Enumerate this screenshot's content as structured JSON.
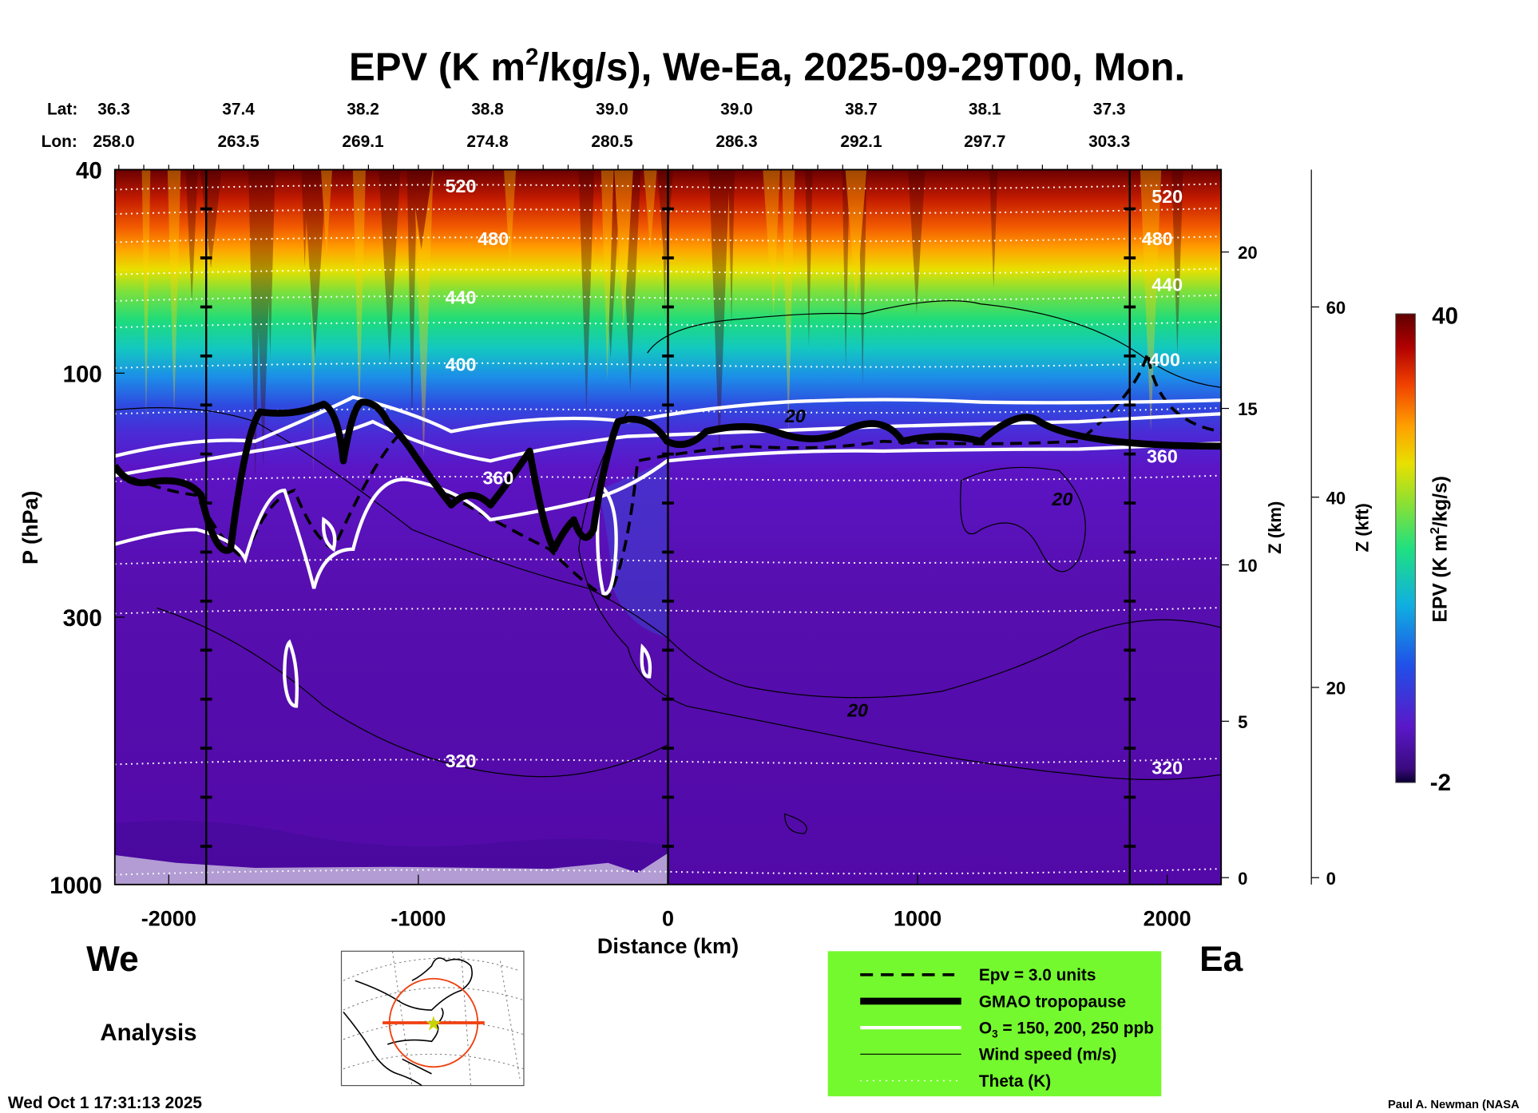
{
  "chart_data": {
    "type": "heatmap",
    "title_pre": "EPV (K m",
    "title_sup": "2",
    "title_post": "/kg/s), We-Ea, 2025-09-29T00, Mon.",
    "xlabel": "Distance (km)",
    "ylabel": "P (hPa)",
    "y2label": "Z (km)",
    "y3label": "Z (kft)",
    "xlim": [
      -2216,
      2216
    ],
    "ylim_hpa": [
      1000,
      40
    ],
    "yscale": "log",
    "x_ticks": [
      -2000,
      -1000,
      0,
      1000,
      2000
    ],
    "y_ticks": [
      40,
      100,
      300,
      1000
    ],
    "z_km_ticks": [
      0,
      5,
      10,
      15,
      20
    ],
    "z_kft_ticks": [
      0,
      20,
      40,
      60
    ],
    "section_markers_km": [
      -1850,
      0,
      1850
    ],
    "lat_label": "Lat:",
    "lon_label": "Lon:",
    "lat": [
      "36.3",
      "37.4",
      "38.2",
      "38.8",
      "39.0",
      "39.0",
      "38.7",
      "38.1",
      "37.3"
    ],
    "lon": [
      "258.0",
      "263.5",
      "269.1",
      "274.8",
      "280.5",
      "286.3",
      "292.1",
      "297.7",
      "303.3"
    ],
    "colorbar": {
      "label_pre": "EPV (K m",
      "label_sup": "2",
      "label_post": "/kg/s)",
      "min": -2,
      "max": 40,
      "min_label": "-2",
      "max_label": "40"
    },
    "theta_levels_hpa": [
      43,
      48,
      54.5,
      63,
      71,
      80,
      96,
      118,
      160,
      232,
      290,
      572,
      940
    ],
    "theta_labels": [
      {
        "text": "520",
        "x_km": -830,
        "p_hpa": 43
      },
      {
        "text": "520",
        "x_km": 2000,
        "p_hpa": 45
      },
      {
        "text": "480",
        "x_km": -700,
        "p_hpa": 54.5
      },
      {
        "text": "480",
        "x_km": 1960,
        "p_hpa": 54.5
      },
      {
        "text": "440",
        "x_km": -830,
        "p_hpa": 71
      },
      {
        "text": "440",
        "x_km": 2000,
        "p_hpa": 67
      },
      {
        "text": "400",
        "x_km": -830,
        "p_hpa": 96
      },
      {
        "text": "400",
        "x_km": 1990,
        "p_hpa": 94
      },
      {
        "text": "360",
        "x_km": -680,
        "p_hpa": 160
      },
      {
        "text": "360",
        "x_km": 1980,
        "p_hpa": 145
      },
      {
        "text": "320",
        "x_km": -830,
        "p_hpa": 572
      },
      {
        "text": "320",
        "x_km": 2000,
        "p_hpa": 590
      }
    ],
    "wind_labels": [
      {
        "text": "20",
        "x_km": 510,
        "p_hpa": 121
      },
      {
        "text": "20",
        "x_km": 1580,
        "p_hpa": 176
      },
      {
        "text": "20",
        "x_km": 760,
        "p_hpa": 455
      }
    ]
  },
  "labels": {
    "west": "We",
    "east": "Ea",
    "analysis": "Analysis",
    "timestamp": "Wed Oct  1 17:31:13 2025",
    "credit": "Paul A. Newman (NASA"
  },
  "legend": {
    "items": [
      {
        "label": "Epv = 3.0 units"
      },
      {
        "label": "GMAO tropopause"
      },
      {
        "label_pre": "O",
        "label_sub": "3",
        "label_post": " = 150, 200, 250 ppb"
      },
      {
        "label": "Wind speed (m/s)"
      },
      {
        "label": "Theta (K)"
      }
    ],
    "background": "#74f92e"
  }
}
